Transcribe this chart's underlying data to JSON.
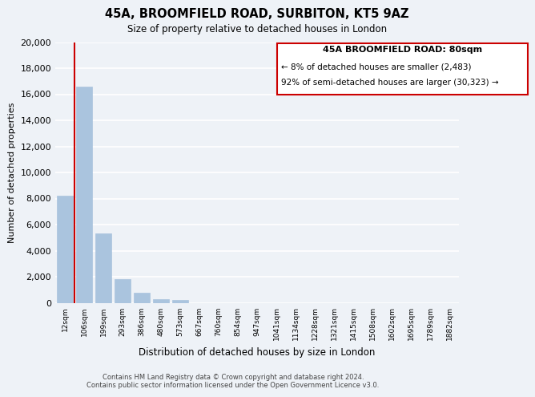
{
  "title": "45A, BROOMFIELD ROAD, SURBITON, KT5 9AZ",
  "subtitle": "Size of property relative to detached houses in London",
  "xlabel": "Distribution of detached houses by size in London",
  "ylabel": "Number of detached properties",
  "bar_labels": [
    "12sqm",
    "106sqm",
    "199sqm",
    "293sqm",
    "386sqm",
    "480sqm",
    "573sqm",
    "667sqm",
    "760sqm",
    "854sqm",
    "947sqm",
    "1041sqm",
    "1134sqm",
    "1228sqm",
    "1321sqm",
    "1415sqm",
    "1508sqm",
    "1602sqm",
    "1695sqm",
    "1789sqm",
    "1882sqm"
  ],
  "bar_values": [
    8200,
    16600,
    5300,
    1800,
    750,
    280,
    200,
    0,
    0,
    0,
    0,
    0,
    0,
    0,
    0,
    0,
    0,
    0,
    0,
    0,
    0
  ],
  "bar_color": "#aac4de",
  "highlight_color": "#cc0000",
  "ylim": [
    0,
    20000
  ],
  "yticks": [
    0,
    2000,
    4000,
    6000,
    8000,
    10000,
    12000,
    14000,
    16000,
    18000,
    20000
  ],
  "annotation_title": "45A BROOMFIELD ROAD: 80sqm",
  "annotation_line1": "← 8% of detached houses are smaller (2,483)",
  "annotation_line2": "92% of semi-detached houses are larger (30,323) →",
  "annotation_box_color": "#ffffff",
  "annotation_box_edge_color": "#cc0000",
  "background_color": "#eef2f7",
  "grid_color": "#ffffff",
  "footer1": "Contains HM Land Registry data © Crown copyright and database right 2024.",
  "footer2": "Contains public sector information licensed under the Open Government Licence v3.0."
}
